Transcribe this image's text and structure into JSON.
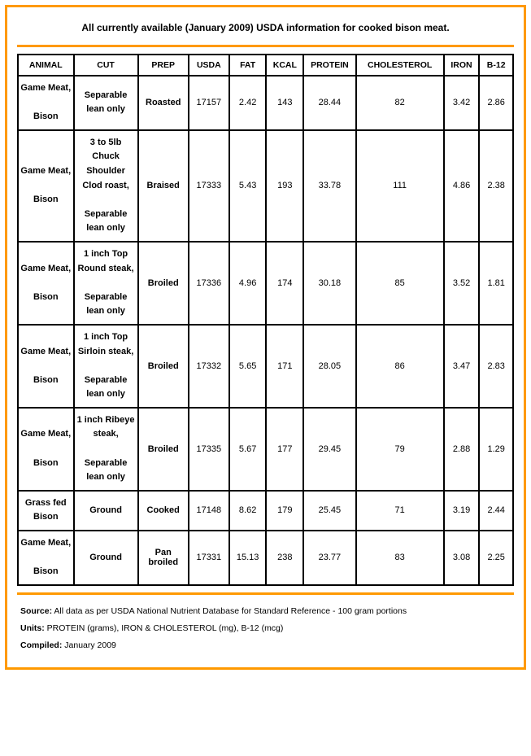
{
  "title": "All currently available (January 2009) USDA information for cooked bison meat.",
  "columns": [
    "ANIMAL",
    "CUT",
    "PREP",
    "USDA",
    "FAT",
    "KCAL",
    "PROTEIN",
    "CHOLESTEROL",
    "IRON",
    "B-12"
  ],
  "rows": [
    {
      "animal": "Game Meat,\n\nBison",
      "cut": "Separable lean only",
      "prep": "Roasted",
      "usda": "17157",
      "fat": "2.42",
      "kcal": "143",
      "protein": "28.44",
      "chol": "82",
      "iron": "3.42",
      "b12": "2.86"
    },
    {
      "animal": "Game Meat,\n\nBison",
      "cut": "3 to 5lb Chuck Shoulder Clod roast,\n\nSeparable lean only",
      "prep": "Braised",
      "usda": "17333",
      "fat": "5.43",
      "kcal": "193",
      "protein": "33.78",
      "chol": "111",
      "iron": "4.86",
      "b12": "2.38"
    },
    {
      "animal": "Game Meat,\n\nBison",
      "cut": "1 inch Top Round steak,\n\nSeparable lean only",
      "prep": "Broiled",
      "usda": "17336",
      "fat": "4.96",
      "kcal": "174",
      "protein": "30.18",
      "chol": "85",
      "iron": "3.52",
      "b12": "1.81"
    },
    {
      "animal": "Game Meat,\n\nBison",
      "cut": "1 inch Top Sirloin steak,\n\nSeparable lean only",
      "prep": "Broiled",
      "usda": "17332",
      "fat": "5.65",
      "kcal": "171",
      "protein": "28.05",
      "chol": "86",
      "iron": "3.47",
      "b12": "2.83"
    },
    {
      "animal": "Game Meat,\n\nBison",
      "cut": "1 inch Ribeye steak,\n\nSeparable lean only",
      "prep": "Broiled",
      "usda": "17335",
      "fat": "5.67",
      "kcal": "177",
      "protein": "29.45",
      "chol": "79",
      "iron": "2.88",
      "b12": "1.29"
    },
    {
      "animal": "Grass fed Bison",
      "cut": "Ground",
      "prep": "Cooked",
      "usda": "17148",
      "fat": "8.62",
      "kcal": "179",
      "protein": "25.45",
      "chol": "71",
      "iron": "3.19",
      "b12": "2.44"
    },
    {
      "animal": "Game Meat,\n\nBison",
      "cut": "Ground",
      "prep": "Pan broiled",
      "usda": "17331",
      "fat": "15.13",
      "kcal": "238",
      "protein": "23.77",
      "chol": "83",
      "iron": "3.08",
      "b12": "2.25"
    }
  ],
  "footer": {
    "source_label": "Source:",
    "source_text": " All data as per USDA National Nutrient Database for Standard Reference - 100 gram portions",
    "units_label": "Units:",
    "units_text": " PROTEIN (grams), IRON & CHOLESTEROL (mg), B-12 (mcg)",
    "compiled_label": "Compiled:",
    "compiled_text": " January 2009"
  }
}
